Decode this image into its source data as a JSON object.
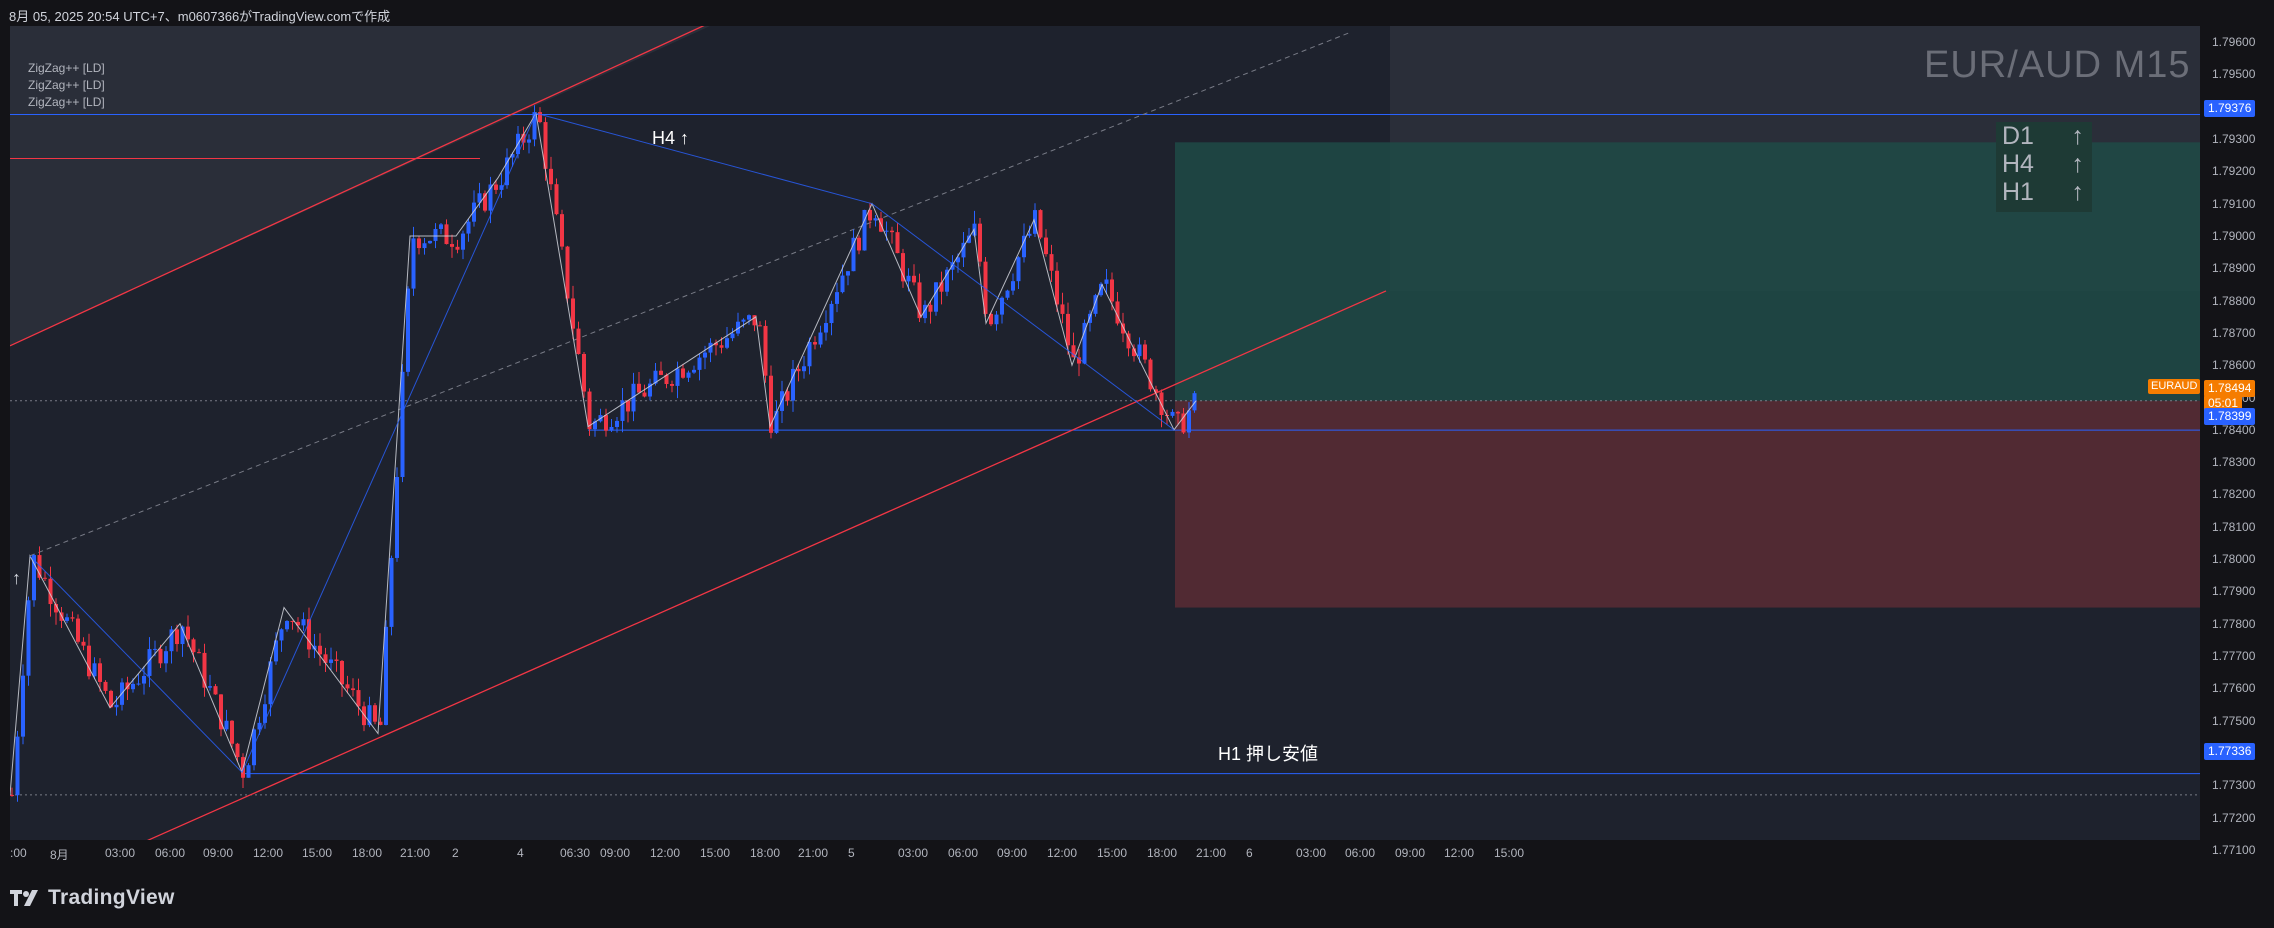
{
  "header": {
    "text": "8月 05, 2025 20:54 UTC+7、m0607366がTradingView.comで作成"
  },
  "indicators": [
    "ZigZag++ [LD]",
    "ZigZag++ [LD]",
    "ZigZag++ [LD]"
  ],
  "symbol": "EUR/AUD M15",
  "trend_panel": [
    {
      "tf": "D1",
      "arrow": "↑"
    },
    {
      "tf": "H4",
      "arrow": "↑"
    },
    {
      "tf": "H1",
      "arrow": "↑"
    }
  ],
  "labels": {
    "h4": "H4 ↑",
    "h1_support": "H1 押し安値",
    "left_arrow": "↑",
    "symbol_tag": "EURAUD"
  },
  "price_axis": [
    "1.79600",
    "1.79500",
    "1.79400",
    "1.79300",
    "1.79200",
    "1.79100",
    "1.79000",
    "1.78900",
    "1.78800",
    "1.78700",
    "1.78600",
    "1.78500",
    "1.78400",
    "1.78300",
    "1.78200",
    "1.78100",
    "1.78000",
    "1.77900",
    "1.77800",
    "1.77700",
    "1.77600",
    "1.77500",
    "1.77400",
    "1.77300",
    "1.77200",
    "1.77100"
  ],
  "price_tags": {
    "top_line": "1.79376",
    "current_price": "1.78494",
    "countdown": "05:01",
    "range_low": "1.78399",
    "h1_support": "1.77336"
  },
  "time_axis": [
    ":00",
    "8月",
    "03:00",
    "06:00",
    "09:00",
    "12:00",
    "15:00",
    "18:00",
    "21:00",
    "2",
    "4",
    "06:30",
    "09:00",
    "12:00",
    "15:00",
    "18:00",
    "21:00",
    "5",
    "03:00",
    "06:00",
    "09:00",
    "12:00",
    "15:00",
    "18:00",
    "21:00",
    "6",
    "03:00",
    "06:00",
    "09:00",
    "12:00",
    "15:00"
  ],
  "footer": {
    "brand": "TradingView"
  },
  "colors": {
    "background": "#1e222d",
    "bull_candle": "#2962ff",
    "bear_candle": "#f23645",
    "channel": "#f23645",
    "blue_line": "#2962ff",
    "zigzag": "#d1d4dc",
    "tp_zone": "#1f4a46",
    "sl_zone": "#5a2b35",
    "current_price": "#f57c00"
  },
  "chart_data": {
    "type": "candlestick",
    "title": "EUR/AUD M15",
    "ylim": [
      1.7705,
      1.7965
    ],
    "key_levels": {
      "resistance": 1.79376,
      "range_low": 1.78399,
      "h1_support": 1.77336,
      "current": 1.78494
    },
    "trade_zones": {
      "take_profit": [
        1.7849,
        1.7929
      ],
      "stop_loss": [
        1.7785,
        1.7849
      ]
    },
    "close_path_points": [
      {
        "t": 0,
        "price": 1.7727
      },
      {
        "t": 20,
        "price": 1.7801
      },
      {
        "t": 100,
        "price": 1.7754
      },
      {
        "t": 170,
        "price": 1.778
      },
      {
        "t": 232,
        "price": 1.7734
      },
      {
        "t": 274,
        "price": 1.7785
      },
      {
        "t": 368,
        "price": 1.7746
      },
      {
        "t": 400,
        "price": 1.79
      },
      {
        "t": 446,
        "price": 1.79
      },
      {
        "t": 488,
        "price": 1.7918
      },
      {
        "t": 526,
        "price": 1.7938
      },
      {
        "t": 578,
        "price": 1.7841
      },
      {
        "t": 746,
        "price": 1.7875
      },
      {
        "t": 760,
        "price": 1.7841
      },
      {
        "t": 862,
        "price": 1.791
      },
      {
        "t": 911,
        "price": 1.7875
      },
      {
        "t": 964,
        "price": 1.7902
      },
      {
        "t": 976,
        "price": 1.7873
      },
      {
        "t": 1024,
        "price": 1.7905
      },
      {
        "t": 1062,
        "price": 1.786
      },
      {
        "t": 1092,
        "price": 1.7885
      },
      {
        "t": 1164,
        "price": 1.784
      },
      {
        "t": 1186,
        "price": 1.7849
      }
    ]
  }
}
